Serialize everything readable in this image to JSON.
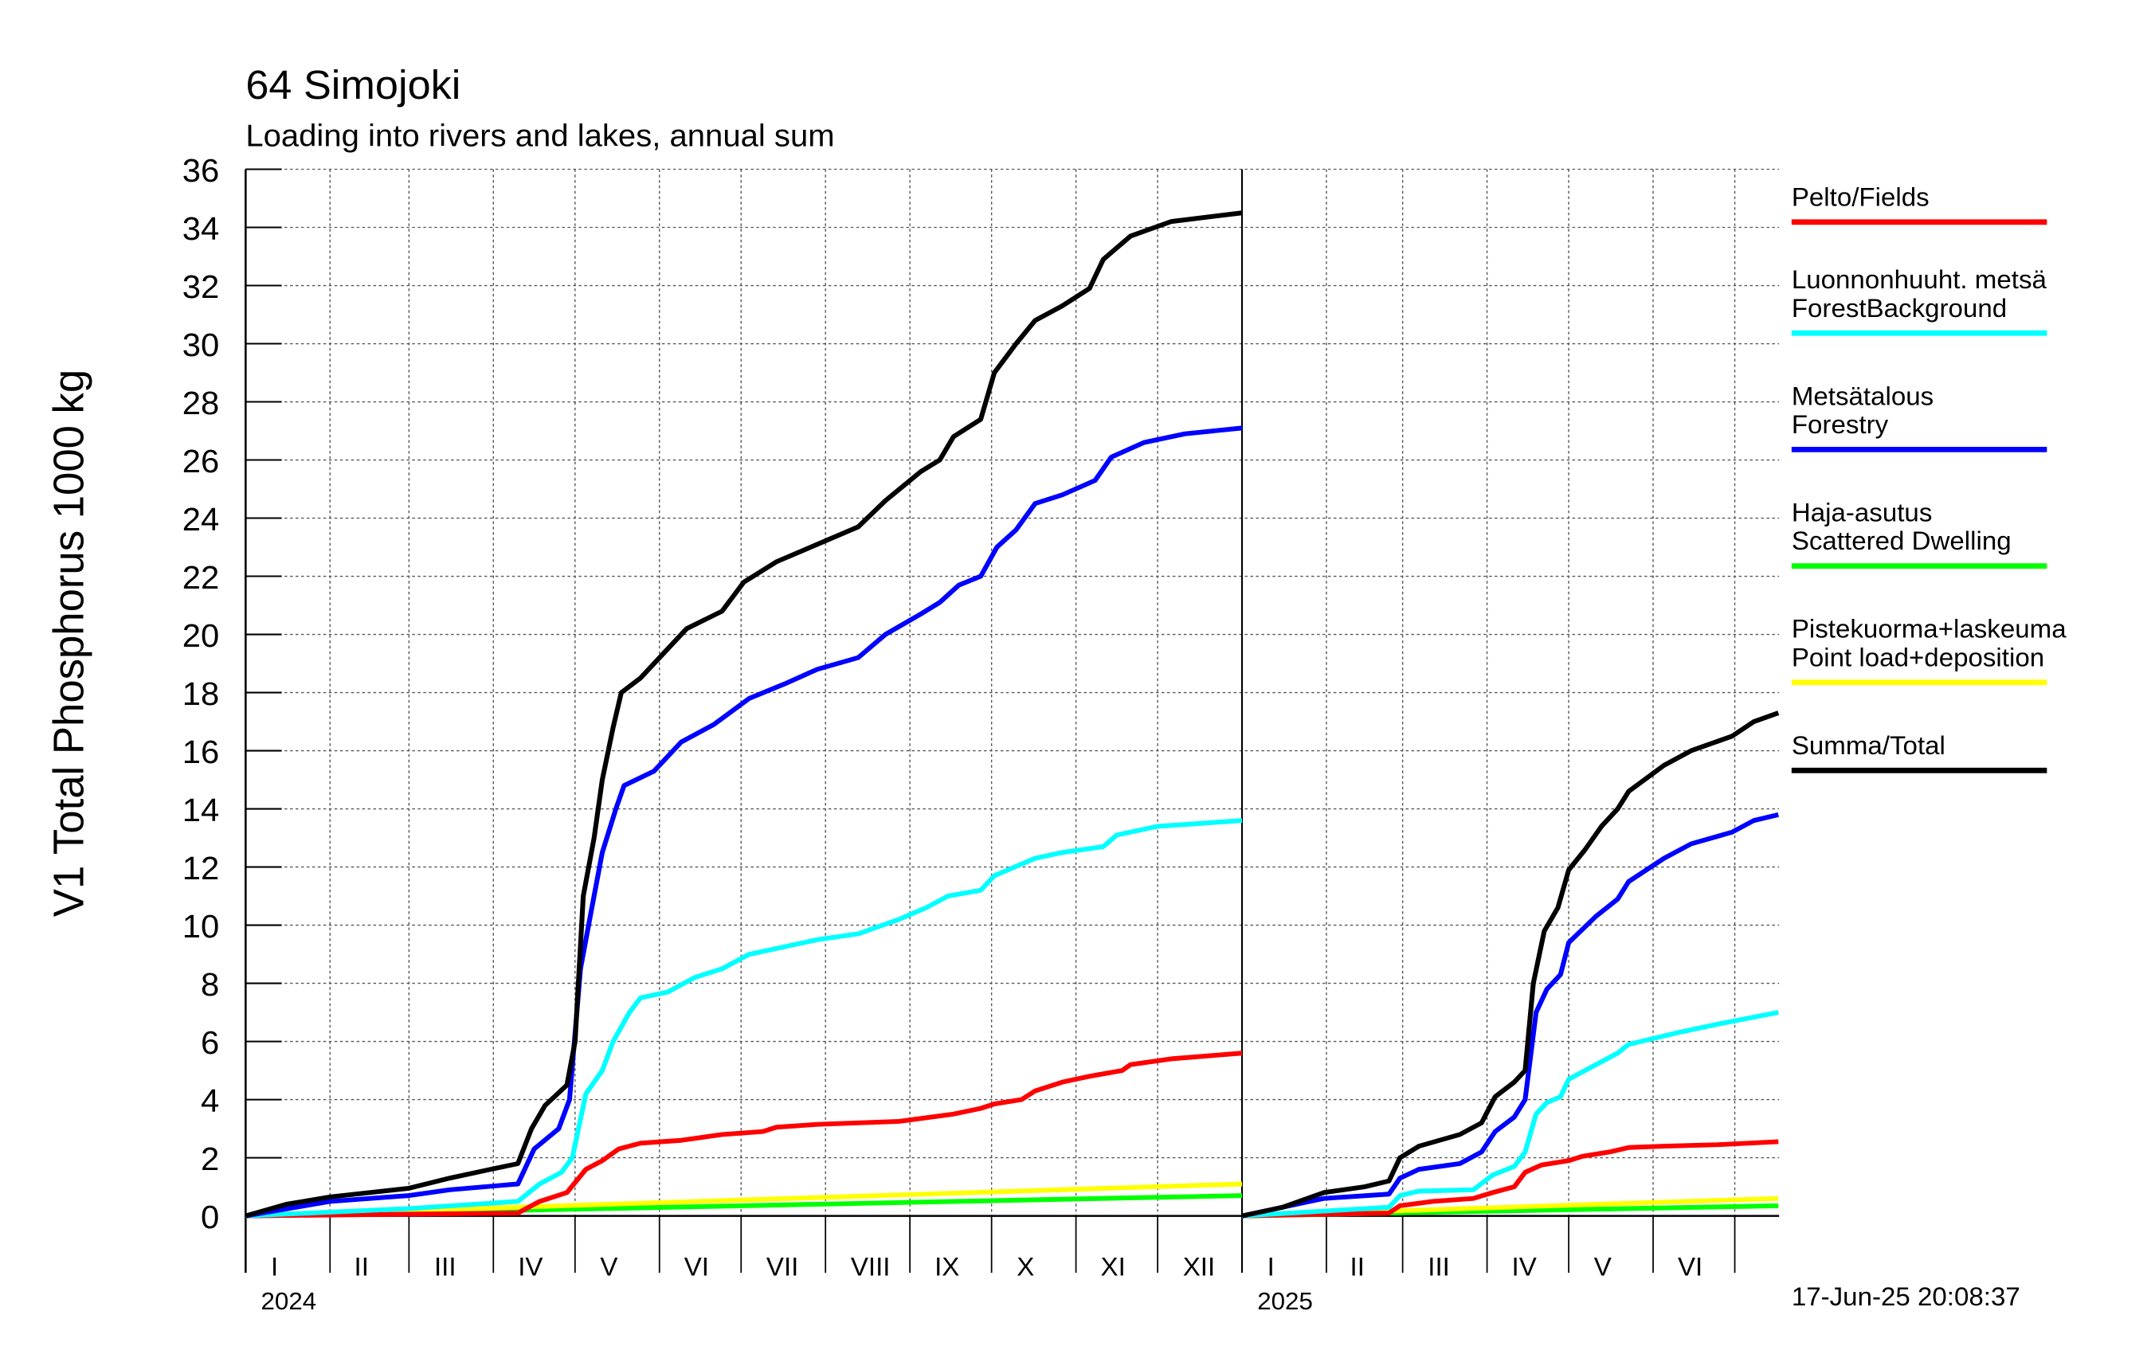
{
  "chart_data": {
    "type": "line",
    "title": "64 Simojoki",
    "subtitle": "Loading into rivers and lakes, annual sum",
    "ylabel": "V1 Total Phosphorus 1000 kg",
    "xlabel": "",
    "ylim": [
      0,
      36
    ],
    "yticks": [
      0,
      2,
      4,
      6,
      8,
      10,
      12,
      14,
      16,
      18,
      20,
      22,
      24,
      26,
      28,
      30,
      32,
      34,
      36
    ],
    "grid": true,
    "legend_position": "right",
    "timestamp": "17-Jun-25 20:08:37",
    "x_units": "day of year",
    "years": [
      {
        "label": "2024",
        "length_days": 366,
        "shown_days": 366,
        "months": [
          {
            "label": "I",
            "start": 0
          },
          {
            "label": "II",
            "start": 31
          },
          {
            "label": "III",
            "start": 60
          },
          {
            "label": "IV",
            "start": 91
          },
          {
            "label": "V",
            "start": 121
          },
          {
            "label": "VI",
            "start": 152
          },
          {
            "label": "VII",
            "start": 182
          },
          {
            "label": "VIII",
            "start": 213
          },
          {
            "label": "IX",
            "start": 244
          },
          {
            "label": "X",
            "start": 274
          },
          {
            "label": "XI",
            "start": 305
          },
          {
            "label": "XII",
            "start": 335
          }
        ],
        "series": {
          "fields": [
            [
              0,
              0
            ],
            [
              100,
              0.1
            ],
            [
              108,
              0.5
            ],
            [
              118,
              0.8
            ],
            [
              125,
              1.6
            ],
            [
              131,
              1.9
            ],
            [
              137,
              2.3
            ],
            [
              145,
              2.5
            ],
            [
              160,
              2.6
            ],
            [
              175,
              2.8
            ],
            [
              190,
              2.9
            ],
            [
              195,
              3.05
            ],
            [
              210,
              3.15
            ],
            [
              240,
              3.25
            ],
            [
              260,
              3.5
            ],
            [
              270,
              3.7
            ],
            [
              275,
              3.85
            ],
            [
              285,
              4.0
            ],
            [
              290,
              4.3
            ],
            [
              300,
              4.6
            ],
            [
              310,
              4.8
            ],
            [
              322,
              5.0
            ],
            [
              325,
              5.2
            ],
            [
              340,
              5.4
            ],
            [
              366,
              5.6
            ]
          ],
          "forest_background": [
            [
              0,
              0
            ],
            [
              60,
              0.25
            ],
            [
              100,
              0.5
            ],
            [
              108,
              1.1
            ],
            [
              116,
              1.5
            ],
            [
              120,
              2.0
            ],
            [
              125,
              4.2
            ],
            [
              131,
              5.0
            ],
            [
              135,
              6.0
            ],
            [
              141,
              7.0
            ],
            [
              145,
              7.5
            ],
            [
              155,
              7.7
            ],
            [
              165,
              8.2
            ],
            [
              175,
              8.5
            ],
            [
              185,
              9.0
            ],
            [
              195,
              9.2
            ],
            [
              210,
              9.5
            ],
            [
              225,
              9.7
            ],
            [
              240,
              10.2
            ],
            [
              250,
              10.6
            ],
            [
              258,
              11.0
            ],
            [
              270,
              11.2
            ],
            [
              275,
              11.7
            ],
            [
              290,
              12.3
            ],
            [
              300,
              12.5
            ],
            [
              315,
              12.7
            ],
            [
              320,
              13.1
            ],
            [
              335,
              13.4
            ],
            [
              366,
              13.6
            ]
          ],
          "forestry": [
            [
              0,
              0
            ],
            [
              31,
              0.5
            ],
            [
              60,
              0.7
            ],
            [
              75,
              0.9
            ],
            [
              100,
              1.1
            ],
            [
              106,
              2.3
            ],
            [
              115,
              3.0
            ],
            [
              119,
              4.0
            ],
            [
              123,
              8.5
            ],
            [
              127,
              10.5
            ],
            [
              131,
              12.5
            ],
            [
              136,
              14
            ],
            [
              139,
              14.8
            ],
            [
              150,
              15.3
            ],
            [
              160,
              16.3
            ],
            [
              172,
              16.9
            ],
            [
              185,
              17.8
            ],
            [
              198,
              18.3
            ],
            [
              210,
              18.8
            ],
            [
              225,
              19.2
            ],
            [
              235,
              20
            ],
            [
              248,
              20.7
            ],
            [
              255,
              21.1
            ],
            [
              262,
              21.7
            ],
            [
              270,
              22
            ],
            [
              276,
              23
            ],
            [
              283,
              23.6
            ],
            [
              290,
              24.5
            ],
            [
              300,
              24.8
            ],
            [
              312,
              25.3
            ],
            [
              318,
              26.1
            ],
            [
              330,
              26.6
            ],
            [
              345,
              26.9
            ],
            [
              366,
              27.1
            ]
          ],
          "scattered_dwelling": [
            [
              0,
              0
            ],
            [
              366,
              0.7
            ]
          ],
          "point_load": [
            [
              0,
              0
            ],
            [
              366,
              1.1
            ]
          ],
          "total": [
            [
              0,
              0
            ],
            [
              15,
              0.4
            ],
            [
              31,
              0.65
            ],
            [
              60,
              0.95
            ],
            [
              75,
              1.3
            ],
            [
              90,
              1.6
            ],
            [
              100,
              1.8
            ],
            [
              105,
              3.0
            ],
            [
              110,
              3.8
            ],
            [
              118,
              4.5
            ],
            [
              121,
              6
            ],
            [
              124,
              11
            ],
            [
              128,
              13
            ],
            [
              131,
              15
            ],
            [
              135,
              16.8
            ],
            [
              138,
              18
            ],
            [
              145,
              18.5
            ],
            [
              155,
              19.5
            ],
            [
              162,
              20.2
            ],
            [
              175,
              20.8
            ],
            [
              183,
              21.8
            ],
            [
              195,
              22.5
            ],
            [
              210,
              23.1
            ],
            [
              225,
              23.7
            ],
            [
              235,
              24.6
            ],
            [
              248,
              25.6
            ],
            [
              255,
              26
            ],
            [
              260,
              26.8
            ],
            [
              270,
              27.4
            ],
            [
              275,
              29
            ],
            [
              283,
              30
            ],
            [
              290,
              30.8
            ],
            [
              300,
              31.3
            ],
            [
              310,
              31.9
            ],
            [
              315,
              32.9
            ],
            [
              325,
              33.7
            ],
            [
              340,
              34.2
            ],
            [
              366,
              34.5
            ]
          ]
        }
      },
      {
        "label": "2025",
        "length_days": 365,
        "shown_days": 197,
        "months": [
          {
            "label": "I",
            "start": 0
          },
          {
            "label": "II",
            "start": 31
          },
          {
            "label": "III",
            "start": 59
          },
          {
            "label": "IV",
            "start": 90
          },
          {
            "label": "V",
            "start": 120
          },
          {
            "label": "VI",
            "start": 151
          },
          {
            "label": "",
            "start": 181
          }
        ],
        "series": {
          "fields": [
            [
              0,
              0
            ],
            [
              54,
              0.1
            ],
            [
              58,
              0.35
            ],
            [
              70,
              0.5
            ],
            [
              85,
              0.6
            ],
            [
              92,
              0.8
            ],
            [
              100,
              1.0
            ],
            [
              104,
              1.5
            ],
            [
              110,
              1.75
            ],
            [
              120,
              1.9
            ],
            [
              125,
              2.05
            ],
            [
              135,
              2.2
            ],
            [
              142,
              2.35
            ],
            [
              155,
              2.4
            ],
            [
              175,
              2.45
            ],
            [
              197,
              2.55
            ]
          ],
          "forest_background": [
            [
              0,
              0
            ],
            [
              54,
              0.3
            ],
            [
              58,
              0.7
            ],
            [
              65,
              0.85
            ],
            [
              85,
              0.9
            ],
            [
              92,
              1.4
            ],
            [
              100,
              1.7
            ],
            [
              104,
              2.2
            ],
            [
              108,
              3.5
            ],
            [
              112,
              3.9
            ],
            [
              117,
              4.1
            ],
            [
              120,
              4.7
            ],
            [
              130,
              5.2
            ],
            [
              138,
              5.6
            ],
            [
              142,
              5.9
            ],
            [
              160,
              6.3
            ],
            [
              175,
              6.6
            ],
            [
              197,
              7.0
            ]
          ],
          "forestry": [
            [
              0,
              0
            ],
            [
              30,
              0.6
            ],
            [
              54,
              0.75
            ],
            [
              58,
              1.3
            ],
            [
              65,
              1.6
            ],
            [
              80,
              1.8
            ],
            [
              88,
              2.2
            ],
            [
              93,
              2.9
            ],
            [
              100,
              3.4
            ],
            [
              104,
              4.0
            ],
            [
              108,
              7.0
            ],
            [
              112,
              7.8
            ],
            [
              117,
              8.3
            ],
            [
              120,
              9.4
            ],
            [
              130,
              10.3
            ],
            [
              138,
              10.9
            ],
            [
              142,
              11.5
            ],
            [
              155,
              12.3
            ],
            [
              165,
              12.8
            ],
            [
              180,
              13.2
            ],
            [
              188,
              13.6
            ],
            [
              197,
              13.8
            ]
          ],
          "scattered_dwelling": [
            [
              0,
              0
            ],
            [
              197,
              0.35
            ]
          ],
          "point_load": [
            [
              0,
              0
            ],
            [
              197,
              0.6
            ]
          ],
          "total": [
            [
              0,
              0
            ],
            [
              15,
              0.3
            ],
            [
              30,
              0.8
            ],
            [
              45,
              1.0
            ],
            [
              54,
              1.2
            ],
            [
              58,
              2.0
            ],
            [
              65,
              2.4
            ],
            [
              80,
              2.8
            ],
            [
              88,
              3.2
            ],
            [
              93,
              4.1
            ],
            [
              100,
              4.6
            ],
            [
              104,
              5.0
            ],
            [
              107,
              8
            ],
            [
              111,
              9.8
            ],
            [
              116,
              10.6
            ],
            [
              120,
              11.9
            ],
            [
              126,
              12.6
            ],
            [
              132,
              13.4
            ],
            [
              138,
              14.0
            ],
            [
              142,
              14.6
            ],
            [
              155,
              15.5
            ],
            [
              165,
              16.0
            ],
            [
              180,
              16.5
            ],
            [
              188,
              17.0
            ],
            [
              197,
              17.3
            ]
          ]
        }
      }
    ],
    "legend": [
      {
        "key": "fields",
        "lines": [
          "Pelto/Fields"
        ],
        "color": "#ff0000"
      },
      {
        "key": "forest_background",
        "lines": [
          "Luonnonhuuht. metsä",
          "ForestBackground"
        ],
        "color": "#00ffff"
      },
      {
        "key": "forestry",
        "lines": [
          "Metsätalous",
          "Forestry"
        ],
        "color": "#0000ff"
      },
      {
        "key": "scattered_dwelling",
        "lines": [
          "Haja-asutus",
          "Scattered Dwelling"
        ],
        "color": "#00ff00"
      },
      {
        "key": "point_load",
        "lines": [
          "Pistekuorma+laskeuma",
          "Point load+deposition"
        ],
        "color": "#ffff00"
      },
      {
        "key": "total",
        "lines": [
          "Summa/Total"
        ],
        "color": "#000000"
      }
    ]
  }
}
